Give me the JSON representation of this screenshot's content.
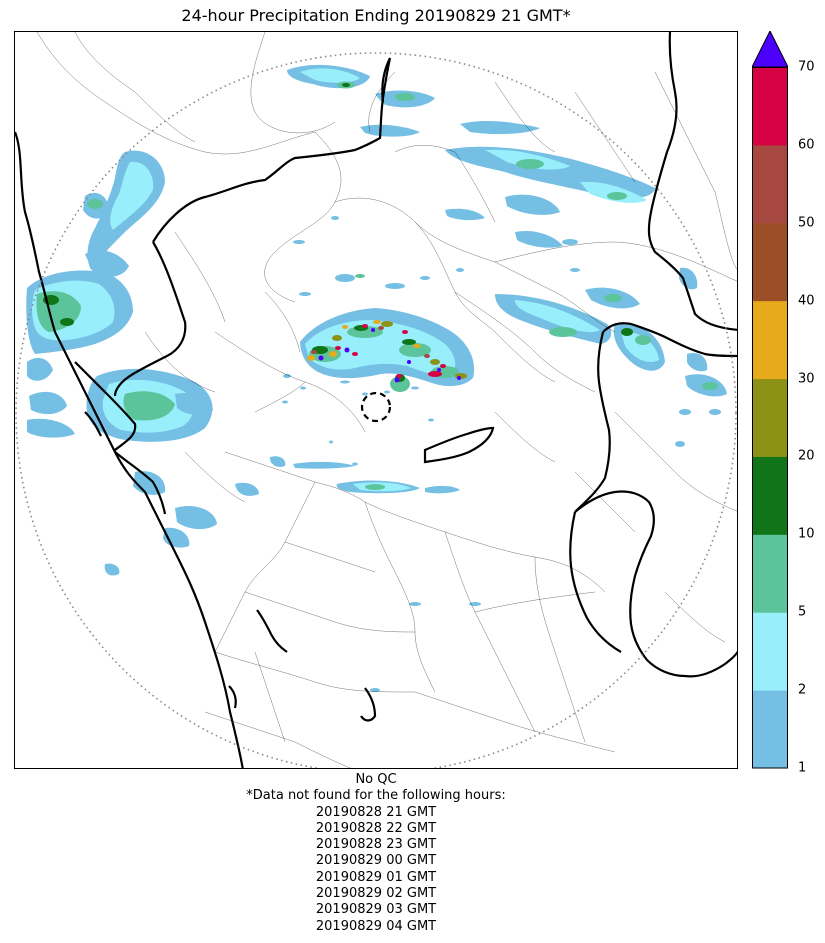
{
  "title": "24-hour Precipitation Ending 20190829 21 GMT*",
  "colorbar": {
    "ticks": [
      "1",
      "2",
      "5",
      "10",
      "20",
      "30",
      "40",
      "50",
      "60",
      "70"
    ],
    "colors": [
      "#74bfe3",
      "#99eefb",
      "#5cc49a",
      "#107519",
      "#8c9216",
      "#e7aa1b",
      "#9c4e27",
      "#a6483f",
      "#d60044"
    ],
    "over_color": "#4e00ff",
    "extend": "max"
  },
  "notes": {
    "qc": "No QC",
    "missing_header": "*Data not found for the following hours:",
    "missing_hours": [
      "20190828 21 GMT",
      "20190828 22 GMT",
      "20190828 23 GMT",
      "20190829 00 GMT",
      "20190829 01 GMT",
      "20190829 02 GMT",
      "20190829 03 GMT",
      "20190829 04 GMT"
    ]
  },
  "map": {
    "range_ring_style": "dotted",
    "radar_site_marker": "dashed-circle",
    "boundaries": [
      "state-borders",
      "district-borders",
      "coastline"
    ]
  }
}
